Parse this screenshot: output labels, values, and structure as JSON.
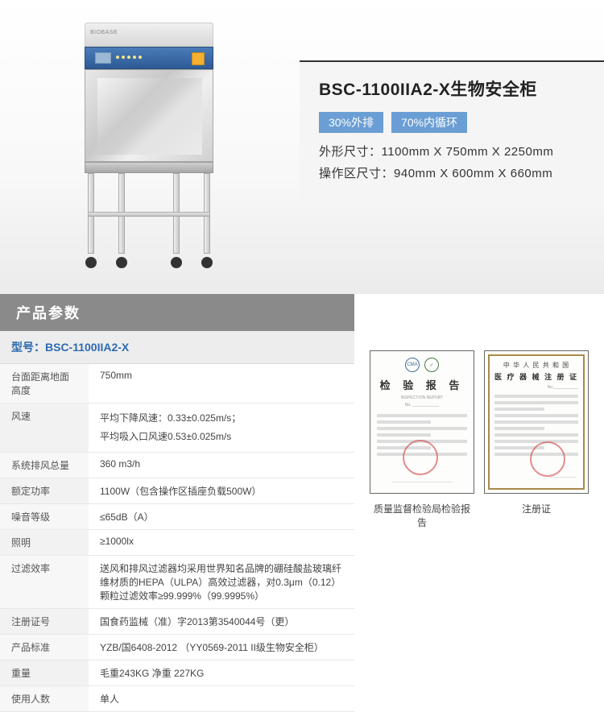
{
  "product": {
    "title": "BSC-1100IIA2-X生物安全柜",
    "badges": [
      "30%外排",
      "70%内循环"
    ],
    "external_dim_label": "外形尺寸：",
    "external_dim": "1100mm X 750mm X 2250mm",
    "work_dim_label": "操作区尺寸：",
    "work_dim": "940mm X 600mm X 660mm",
    "brand": "BIOBASE"
  },
  "params": {
    "header": "产品参数",
    "model_label": "型号：",
    "model": "BSC-1100IIA2-X",
    "rows": [
      {
        "label": "台面距离地面高度",
        "value": "750mm"
      },
      {
        "label": "风速",
        "value": "平均下降风速：0.33±0.025m/s；\n平均吸入口风速0.53±0.025m/s"
      },
      {
        "label": "系统排风总量",
        "value": "360 m3/h"
      },
      {
        "label": "额定功率",
        "value": "1100W（包含操作区插座负载500W）"
      },
      {
        "label": "噪音等级",
        "value": "≤65dB（A）"
      },
      {
        "label": "照明",
        "value": "≥1000lx"
      },
      {
        "label": "过滤效率",
        "value": "送风和排风过滤器均采用世界知名品牌的硼硅酸盐玻璃纤维材质的HEPA（ULPA）高效过滤器，对0.3μm（0.12）颗粒过滤效率≥99.999%（99.9995%）"
      },
      {
        "label": "注册证号",
        "value": "国食药监械（准）字2013第3540044号（更）"
      },
      {
        "label": "产品标准",
        "value": "YZB/国6408-2012 （YY0569-2011 II级生物安全柜）"
      },
      {
        "label": "重量",
        "value": "毛重243KG 净重 227KG"
      },
      {
        "label": "使用人数",
        "value": "单人"
      }
    ]
  },
  "certs": {
    "cert1": {
      "title": "检 验 报 告",
      "caption": "质量监督检验局检验报告"
    },
    "cert2": {
      "line1": "中 华 人 民 共 和 国",
      "line2": "医 疗 器 械 注 册 证",
      "caption": "注册证"
    }
  },
  "colors": {
    "header_bg": "#8a8a8a",
    "badge_bg": "#6a9ed4",
    "model_color": "#2d6ab0",
    "panel_blue": "#2d5a94",
    "info_border": "#333333"
  }
}
